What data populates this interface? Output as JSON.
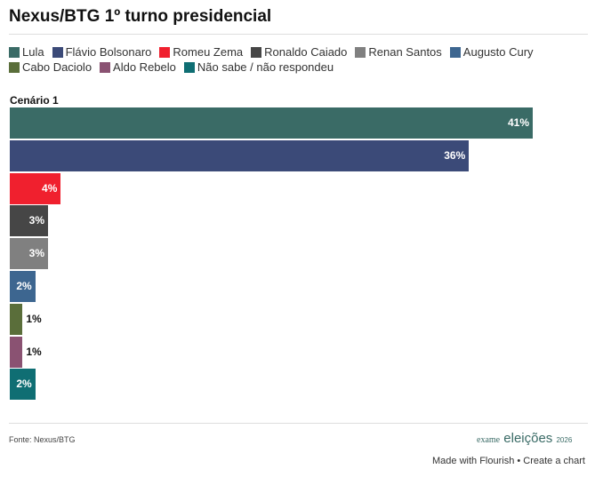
{
  "chart_data": {
    "type": "bar",
    "title": "Nexus/BTG 1º turno presidencial",
    "subtitle": "Cenário 1",
    "categories": [
      "Lula",
      "Flávio Bolsonaro",
      "Romeu Zema",
      "Ronaldo Caiado",
      "Renan Santos",
      "Augusto Cury",
      "Cabo Daciolo",
      "Aldo Rebelo",
      "Não sabe / não respondeu"
    ],
    "values": [
      41,
      36,
      4,
      3,
      3,
      2,
      1,
      1,
      2
    ],
    "value_labels": [
      "41%",
      "36%",
      "4%",
      "3%",
      "3%",
      "2%",
      "1%",
      "1%",
      "2%"
    ],
    "colors": [
      "#3a6b66",
      "#3b4a78",
      "#f0202e",
      "#464646",
      "#808080",
      "#3d6690",
      "#5a6e3a",
      "#8a5272",
      "#0f6e73"
    ],
    "xlim": [
      0,
      41
    ],
    "legend": "top",
    "orientation": "horizontal"
  },
  "footer": {
    "source": "Fonte: Nexus/BTG",
    "logo_exame": "exame",
    "logo_eleicoes": "eleições",
    "logo_year": "2026",
    "made_with": "Made with Flourish • Create a chart"
  }
}
